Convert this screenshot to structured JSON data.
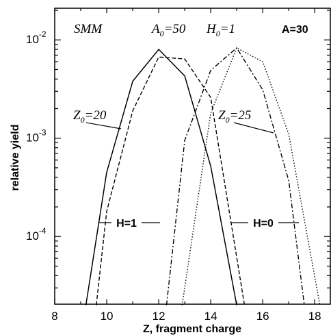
{
  "chart_data": {
    "type": "line",
    "xlabel": "Z, fragment charge",
    "ylabel": "relative yield",
    "xlim": [
      8,
      18.6
    ],
    "ylim": [
      2.05e-05,
      0.021
    ],
    "yscale": "log",
    "x_ticks": [
      8,
      10,
      12,
      14,
      16,
      18
    ],
    "y_ticks": [
      {
        "value": 0.01,
        "base": "10",
        "exp": "-2"
      },
      {
        "value": 0.001,
        "base": "10",
        "exp": "-3"
      },
      {
        "value": 0.0001,
        "base": "10",
        "exp": "-4"
      }
    ],
    "grid": false,
    "annotations": {
      "model": "SMM",
      "a0": "A",
      "a0_sub": "0",
      "a0_val": "=50",
      "h0": "H",
      "h0_sub": "0",
      "h0_val": "=1",
      "mass": "A=30",
      "z20": "Z",
      "z20_sub": "0",
      "z20_val": "=20",
      "z25": "Z",
      "z25_sub": "0",
      "z25_val": "=25",
      "h1_label": "H=1",
      "h0_label": "H=0"
    },
    "series": [
      {
        "style": "solid",
        "x": [
          9.2,
          10,
          11,
          12,
          13,
          14,
          15
        ],
        "y": [
          2e-05,
          0.00045,
          0.0038,
          0.008,
          0.0043,
          0.00052,
          2e-05
        ]
      },
      {
        "style": "dashed",
        "x": [
          9.6,
          10,
          11,
          12,
          13,
          14,
          15.3
        ],
        "y": [
          2e-05,
          0.00018,
          0.0019,
          0.0067,
          0.0064,
          0.0026,
          2e-05
        ]
      },
      {
        "style": "dashdot",
        "x": [
          12.3,
          13,
          14,
          15,
          16,
          17,
          17.6
        ],
        "y": [
          2e-05,
          0.00095,
          0.0049,
          0.0083,
          0.0031,
          0.00037,
          2e-05
        ]
      },
      {
        "style": "dotted",
        "x": [
          12.9,
          14,
          15,
          16,
          17,
          18.2
        ],
        "y": [
          2e-05,
          0.0018,
          0.0083,
          0.006,
          0.0011,
          2e-05
        ]
      }
    ]
  }
}
